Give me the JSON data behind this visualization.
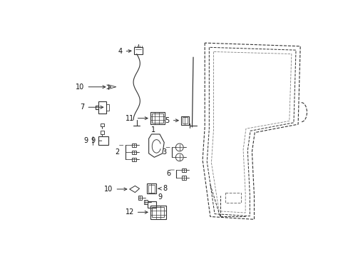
{
  "bg_color": "#ffffff",
  "fig_width": 4.89,
  "fig_height": 3.6,
  "dpi": 100,
  "lc": "#333333",
  "lw": 0.8,
  "fs": 7.0
}
